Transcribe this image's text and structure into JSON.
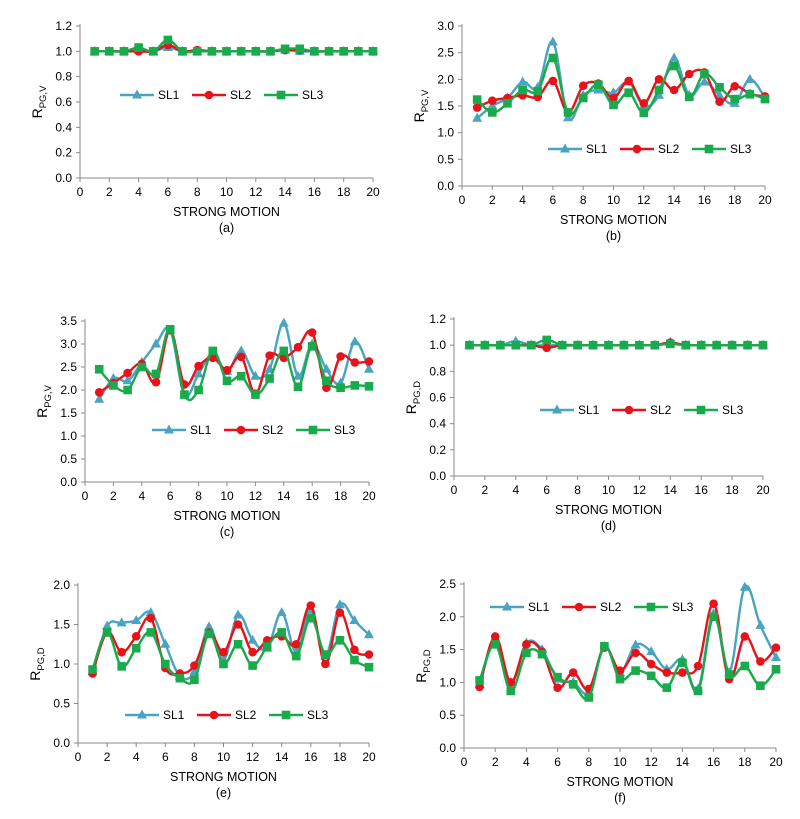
{
  "figure": {
    "colors": {
      "SL1": "#4aa3c0",
      "SL2": "#e8131a",
      "SL3": "#1aaa4e"
    },
    "markers": {
      "SL1": "triangle",
      "SL2": "circle",
      "SL3": "square"
    }
  },
  "chart_data": [
    {
      "id": "a",
      "type": "line",
      "caption": "(a)",
      "xlabel": "STRONG MOTION",
      "ylabel": "R",
      "ylabel_sub": "PG,V",
      "xlim": [
        0,
        20
      ],
      "xticks": [
        0,
        2,
        4,
        6,
        8,
        10,
        12,
        14,
        16,
        18,
        20
      ],
      "ylim": [
        0,
        1.2
      ],
      "yticks": [
        "0.0",
        "0.2",
        "0.4",
        "0.6",
        "0.8",
        "1.0",
        "1.2"
      ],
      "legend_position": "center",
      "x": [
        1,
        2,
        3,
        4,
        5,
        6,
        7,
        8,
        9,
        10,
        11,
        12,
        13,
        14,
        15,
        16,
        17,
        18,
        19,
        20
      ],
      "series": [
        {
          "name": "SL1",
          "values": [
            1,
            1,
            1,
            1.01,
            1,
            1.03,
            1,
            1,
            1,
            1,
            1,
            1,
            1,
            1.01,
            1,
            1,
            1,
            1,
            1,
            1
          ]
        },
        {
          "name": "SL2",
          "values": [
            1,
            1,
            1,
            1.0,
            1,
            1.05,
            1,
            1.01,
            1,
            1,
            1,
            1,
            1,
            1.01,
            1.01,
            1,
            1,
            1,
            1,
            1
          ]
        },
        {
          "name": "SL3",
          "values": [
            1,
            1,
            1,
            1.03,
            1,
            1.09,
            1,
            1,
            1,
            1,
            1,
            1,
            1,
            1.02,
            1.02,
            1,
            1,
            1,
            1,
            1
          ]
        }
      ]
    },
    {
      "id": "b",
      "type": "line",
      "caption": "(b)",
      "xlabel": "STRONG MOTION",
      "ylabel": "R",
      "ylabel_sub": "PG,V",
      "xlim": [
        0,
        20
      ],
      "xticks": [
        0,
        2,
        4,
        6,
        8,
        10,
        12,
        14,
        16,
        18,
        20
      ],
      "ylim": [
        0,
        3.0
      ],
      "yticks": [
        "0.0",
        "0.5",
        "1.0",
        "1.5",
        "2.0",
        "2.5",
        "3.0"
      ],
      "legend_position": "bottom",
      "x": [
        1,
        2,
        3,
        4,
        5,
        6,
        7,
        8,
        9,
        10,
        11,
        12,
        13,
        14,
        15,
        16,
        17,
        18,
        19,
        20
      ],
      "series": [
        {
          "name": "SL1",
          "values": [
            1.27,
            1.5,
            1.65,
            1.95,
            1.85,
            2.7,
            1.28,
            1.7,
            1.8,
            1.75,
            1.95,
            1.5,
            1.7,
            2.4,
            1.7,
            1.95,
            1.7,
            1.55,
            2.0,
            1.65
          ]
        },
        {
          "name": "SL2",
          "values": [
            1.47,
            1.6,
            1.65,
            1.7,
            1.67,
            1.97,
            1.38,
            1.88,
            1.92,
            1.65,
            1.97,
            1.55,
            2.0,
            1.8,
            2.1,
            2.13,
            1.58,
            1.87,
            1.73,
            1.68
          ]
        },
        {
          "name": "SL3",
          "values": [
            1.62,
            1.38,
            1.55,
            1.8,
            1.78,
            2.4,
            1.38,
            1.65,
            1.9,
            1.52,
            1.75,
            1.37,
            1.8,
            2.25,
            1.67,
            2.1,
            1.85,
            1.63,
            1.72,
            1.63
          ]
        }
      ]
    },
    {
      "id": "c",
      "type": "line",
      "caption": "(c)",
      "xlabel": "STRONG MOTION",
      "ylabel": "R",
      "ylabel_sub": "PG,V",
      "xlim": [
        0,
        20
      ],
      "xticks": [
        0,
        2,
        4,
        6,
        8,
        10,
        12,
        14,
        16,
        18,
        20
      ],
      "ylim": [
        0,
        3.5
      ],
      "yticks": [
        "0.0",
        "0.5",
        "1.0",
        "1.5",
        "2.0",
        "2.5",
        "3.0",
        "3.5"
      ],
      "legend_position": "bottom",
      "x": [
        1,
        2,
        3,
        4,
        5,
        6,
        7,
        8,
        9,
        10,
        11,
        12,
        13,
        14,
        15,
        16,
        17,
        18,
        19,
        20
      ],
      "series": [
        {
          "name": "SL1",
          "values": [
            1.8,
            2.25,
            2.2,
            2.6,
            3.0,
            3.3,
            1.9,
            2.35,
            2.8,
            2.4,
            2.85,
            2.3,
            2.45,
            3.45,
            2.3,
            3.0,
            2.45,
            2.15,
            3.05,
            2.45
          ]
        },
        {
          "name": "SL2",
          "values": [
            1.95,
            2.15,
            2.37,
            2.57,
            2.17,
            3.3,
            2.12,
            2.52,
            2.7,
            2.43,
            2.72,
            1.92,
            2.75,
            2.7,
            2.93,
            3.25,
            2.05,
            2.73,
            2.6,
            2.62
          ]
        },
        {
          "name": "SL3",
          "values": [
            2.45,
            2.1,
            2.0,
            2.5,
            2.35,
            3.32,
            1.9,
            2.0,
            2.85,
            2.2,
            2.3,
            1.9,
            2.25,
            2.85,
            2.07,
            2.95,
            2.2,
            2.05,
            2.1,
            2.08
          ]
        }
      ]
    },
    {
      "id": "d",
      "type": "line",
      "caption": "(d)",
      "xlabel": "STRONG MOTION",
      "ylabel": "R",
      "ylabel_sub": "PG,D",
      "xlim": [
        0,
        20
      ],
      "xticks": [
        0,
        2,
        4,
        6,
        8,
        10,
        12,
        14,
        16,
        18,
        20
      ],
      "ylim": [
        0,
        1.2
      ],
      "yticks": [
        "0.0",
        "0.2",
        "0.4",
        "0.6",
        "0.8",
        "1.0",
        "1.2"
      ],
      "legend_position": "center",
      "x": [
        1,
        2,
        3,
        4,
        5,
        6,
        7,
        8,
        9,
        10,
        11,
        12,
        13,
        14,
        15,
        16,
        17,
        18,
        19,
        20
      ],
      "series": [
        {
          "name": "SL1",
          "values": [
            1,
            1,
            1,
            1.03,
            1,
            1.0,
            1,
            1,
            1,
            1,
            1,
            1,
            1,
            1.02,
            1,
            1,
            1,
            1,
            1,
            1
          ]
        },
        {
          "name": "SL2",
          "values": [
            1,
            1,
            1,
            1,
            1,
            0.98,
            1,
            1,
            1,
            1,
            1,
            1,
            1,
            1.02,
            1,
            1,
            1,
            1,
            1,
            1
          ]
        },
        {
          "name": "SL3",
          "values": [
            1,
            1,
            1,
            1,
            1,
            1.04,
            1,
            1,
            1,
            1,
            1,
            1,
            1,
            1.01,
            1,
            1,
            1,
            1,
            1,
            1
          ]
        }
      ]
    },
    {
      "id": "e",
      "type": "line",
      "caption": "(e)",
      "xlabel": "STRONG MOTION",
      "ylabel": "R",
      "ylabel_sub": "PG,D",
      "xlim": [
        0,
        20
      ],
      "xticks": [
        0,
        2,
        4,
        6,
        8,
        10,
        12,
        14,
        16,
        18,
        20
      ],
      "ylim": [
        0,
        2.0
      ],
      "yticks": [
        "0.0",
        "0.5",
        "1.0",
        "1.5",
        "2.0"
      ],
      "legend_position": "bottom",
      "x": [
        1,
        2,
        3,
        4,
        5,
        6,
        7,
        8,
        9,
        10,
        11,
        12,
        13,
        14,
        15,
        16,
        17,
        18,
        19,
        20
      ],
      "series": [
        {
          "name": "SL1",
          "values": [
            0.9,
            1.48,
            1.52,
            1.55,
            1.65,
            1.25,
            0.85,
            0.9,
            1.47,
            1.05,
            1.62,
            1.3,
            1.2,
            1.65,
            1.15,
            1.68,
            1.1,
            1.75,
            1.55,
            1.37
          ]
        },
        {
          "name": "SL2",
          "values": [
            0.88,
            1.4,
            1.15,
            1.35,
            1.58,
            0.95,
            0.88,
            0.98,
            1.4,
            1.15,
            1.5,
            1.15,
            1.3,
            1.35,
            1.25,
            1.74,
            1.0,
            1.65,
            1.18,
            1.12
          ]
        },
        {
          "name": "SL3",
          "values": [
            0.93,
            1.4,
            0.97,
            1.2,
            1.4,
            1.0,
            0.82,
            0.8,
            1.38,
            1.0,
            1.25,
            0.98,
            1.22,
            1.4,
            1.1,
            1.58,
            1.12,
            1.3,
            1.05,
            0.96
          ]
        }
      ]
    },
    {
      "id": "f",
      "type": "line",
      "caption": "(f)",
      "xlabel": "STRONG MOTION",
      "ylabel": "R",
      "ylabel_sub": "PG,D",
      "xlim": [
        0,
        20
      ],
      "xticks": [
        0,
        2,
        4,
        6,
        8,
        10,
        12,
        14,
        16,
        18,
        20
      ],
      "ylim": [
        0,
        2.5
      ],
      "yticks": [
        "0.0",
        "0.5",
        "1.0",
        "1.5",
        "2.0",
        "2.5"
      ],
      "legend_position": "top",
      "x": [
        1,
        2,
        3,
        4,
        5,
        6,
        7,
        8,
        9,
        10,
        11,
        12,
        13,
        14,
        15,
        16,
        17,
        18,
        19,
        20
      ],
      "series": [
        {
          "name": "SL1",
          "values": [
            0.97,
            1.62,
            1.0,
            1.6,
            1.5,
            1.05,
            1.0,
            0.85,
            1.55,
            1.15,
            1.57,
            1.47,
            1.2,
            1.35,
            0.9,
            2.05,
            1.15,
            2.45,
            1.87,
            1.38
          ]
        },
        {
          "name": "SL2",
          "values": [
            0.93,
            1.7,
            1.0,
            1.58,
            1.47,
            0.92,
            1.15,
            0.9,
            1.53,
            1.18,
            1.45,
            1.28,
            1.15,
            1.15,
            1.25,
            2.2,
            1.05,
            1.7,
            1.32,
            1.53
          ]
        },
        {
          "name": "SL3",
          "values": [
            1.03,
            1.58,
            0.87,
            1.45,
            1.43,
            1.08,
            0.97,
            0.77,
            1.55,
            1.05,
            1.18,
            1.1,
            0.92,
            1.3,
            0.87,
            2.0,
            1.12,
            1.25,
            0.95,
            1.2
          ]
        }
      ]
    }
  ]
}
